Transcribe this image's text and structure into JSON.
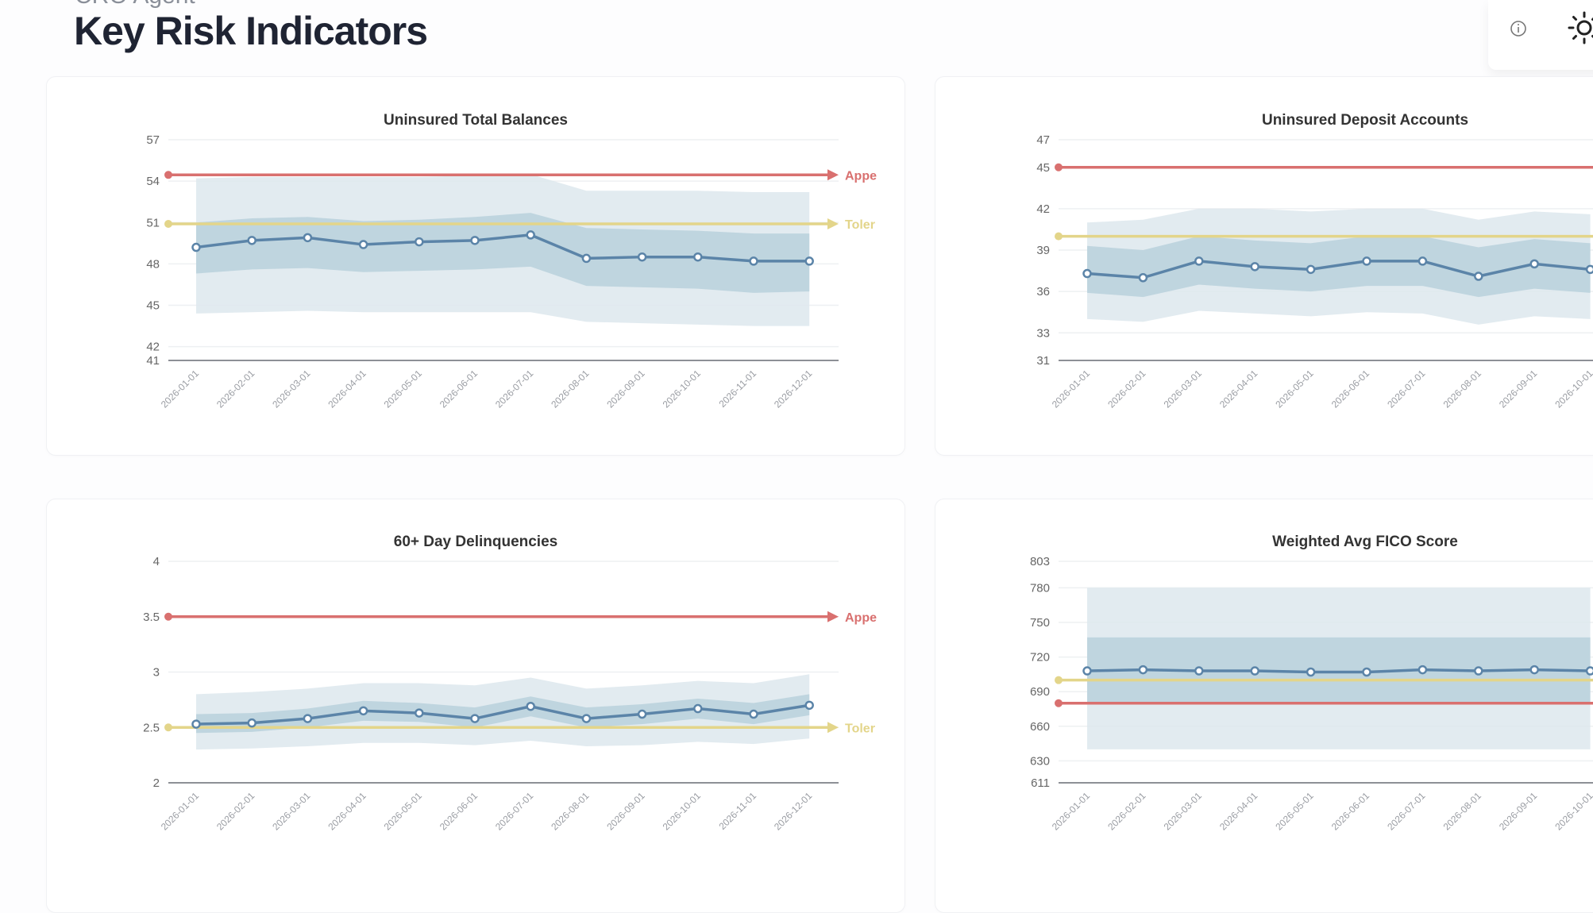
{
  "header": {
    "kicker": "CRO Agent",
    "title": "Key Risk Indicators",
    "icons": [
      "info-icon",
      "sun-icon"
    ]
  },
  "colors": {
    "appetite": "#d9706f",
    "tolerance": "#e3d58a",
    "series": "#5b84a8",
    "outer_band": "#dde8ed",
    "inner_band": "#b9d1dc"
  },
  "chart_data": [
    {
      "type": "line",
      "title": "Uninsured Total Balances",
      "categories": [
        "2026-01-01",
        "2026-02-01",
        "2026-03-01",
        "2026-04-01",
        "2026-05-01",
        "2026-06-01",
        "2026-07-01",
        "2026-08-01",
        "2026-09-01",
        "2026-10-01",
        "2026-11-01",
        "2026-12-01"
      ],
      "values": [
        49.2,
        49.7,
        49.9,
        49.4,
        49.6,
        49.7,
        50.1,
        48.4,
        48.5,
        48.5,
        48.2,
        48.2
      ],
      "inner_band": {
        "upper": [
          51.0,
          51.3,
          51.4,
          51.1,
          51.2,
          51.4,
          51.7,
          50.6,
          50.5,
          50.4,
          50.2,
          50.2
        ],
        "lower": [
          47.3,
          47.6,
          47.7,
          47.4,
          47.5,
          47.6,
          47.8,
          46.4,
          46.3,
          46.2,
          45.9,
          46.0
        ]
      },
      "outer_band": {
        "upper": [
          54.2,
          54.3,
          54.3,
          54.3,
          54.3,
          54.4,
          54.5,
          53.3,
          53.3,
          53.3,
          53.2,
          53.2
        ],
        "lower": [
          44.4,
          44.5,
          44.6,
          44.5,
          44.5,
          44.5,
          44.5,
          43.8,
          43.7,
          43.6,
          43.5,
          43.5
        ]
      },
      "ylim": [
        41,
        57
      ],
      "yticks": [
        41,
        42,
        45,
        48,
        51,
        54,
        57
      ],
      "thresholds": [
        {
          "label": "Appe",
          "value": 54.45,
          "kind": "appetite"
        },
        {
          "label": "Toler",
          "value": 50.9,
          "kind": "tolerance"
        }
      ]
    },
    {
      "type": "line",
      "title": "Uninsured Deposit Accounts",
      "categories": [
        "2026-01-01",
        "2026-02-01",
        "2026-03-01",
        "2026-04-01",
        "2026-05-01",
        "2026-06-01",
        "2026-07-01",
        "2026-08-01",
        "2026-09-01",
        "2026-10-01"
      ],
      "values": [
        37.3,
        37.0,
        38.2,
        37.8,
        37.6,
        38.2,
        38.2,
        37.1,
        38.0,
        37.6
      ],
      "inner_band": {
        "upper": [
          39.3,
          39.0,
          40.0,
          39.7,
          39.5,
          40.0,
          40.0,
          39.2,
          39.8,
          39.5
        ],
        "lower": [
          35.9,
          35.6,
          36.5,
          36.2,
          36.0,
          36.4,
          36.4,
          35.6,
          36.2,
          35.9
        ]
      },
      "outer_band": {
        "upper": [
          41.0,
          41.2,
          42.0,
          42.0,
          41.8,
          42.0,
          42.0,
          41.2,
          41.8,
          41.6
        ],
        "lower": [
          34.0,
          33.8,
          34.6,
          34.4,
          34.2,
          34.5,
          34.4,
          33.6,
          34.2,
          34.0
        ]
      },
      "ylim": [
        31,
        47
      ],
      "yticks": [
        31,
        33,
        36,
        39,
        42,
        45,
        47
      ],
      "thresholds": [
        {
          "label": "",
          "value": 45,
          "kind": "appetite"
        },
        {
          "label": "",
          "value": 40,
          "kind": "tolerance"
        }
      ]
    },
    {
      "type": "line",
      "title": "60+ Day Delinquencies",
      "categories": [
        "2026-01-01",
        "2026-02-01",
        "2026-03-01",
        "2026-04-01",
        "2026-05-01",
        "2026-06-01",
        "2026-07-01",
        "2026-08-01",
        "2026-09-01",
        "2026-10-01",
        "2026-11-01",
        "2026-12-01"
      ],
      "values": [
        2.53,
        2.54,
        2.58,
        2.65,
        2.63,
        2.58,
        2.69,
        2.58,
        2.62,
        2.67,
        2.62,
        2.7
      ],
      "inner_band": {
        "upper": [
          2.62,
          2.63,
          2.67,
          2.74,
          2.72,
          2.68,
          2.78,
          2.68,
          2.71,
          2.76,
          2.72,
          2.8
        ],
        "lower": [
          2.45,
          2.46,
          2.5,
          2.56,
          2.55,
          2.5,
          2.6,
          2.5,
          2.53,
          2.58,
          2.53,
          2.61
        ]
      },
      "outer_band": {
        "upper": [
          2.8,
          2.82,
          2.85,
          2.9,
          2.9,
          2.88,
          2.95,
          2.85,
          2.88,
          2.92,
          2.9,
          2.98
        ],
        "lower": [
          2.3,
          2.31,
          2.33,
          2.36,
          2.36,
          2.34,
          2.38,
          2.33,
          2.34,
          2.37,
          2.35,
          2.4
        ]
      },
      "ylim": [
        2,
        4
      ],
      "yticks": [
        2,
        2.5,
        3,
        3.5,
        4
      ],
      "thresholds": [
        {
          "label": "Appe",
          "value": 3.5,
          "kind": "appetite"
        },
        {
          "label": "Toler",
          "value": 2.5,
          "kind": "tolerance"
        }
      ]
    },
    {
      "type": "line",
      "title": "Weighted Avg FICO Score",
      "categories": [
        "2026-01-01",
        "2026-02-01",
        "2026-03-01",
        "2026-04-01",
        "2026-05-01",
        "2026-06-01",
        "2026-07-01",
        "2026-08-01",
        "2026-09-01",
        "2026-10-01"
      ],
      "values": [
        708,
        709,
        708,
        708,
        707,
        707,
        709,
        708,
        709,
        708
      ],
      "inner_band": {
        "upper": [
          737,
          737,
          737,
          737,
          737,
          737,
          737,
          737,
          737,
          737
        ],
        "lower": [
          680,
          680,
          680,
          680,
          680,
          680,
          680,
          680,
          680,
          680
        ]
      },
      "outer_band": {
        "upper": [
          780,
          780,
          780,
          780,
          780,
          780,
          780,
          780,
          780,
          780
        ],
        "lower": [
          640,
          640,
          640,
          640,
          640,
          640,
          640,
          640,
          640,
          640
        ]
      },
      "ylim": [
        611,
        803
      ],
      "yticks": [
        611,
        630,
        660,
        690,
        720,
        750,
        780,
        803
      ],
      "thresholds": [
        {
          "label": "",
          "value": 680,
          "kind": "appetite"
        },
        {
          "label": "",
          "value": 700,
          "kind": "tolerance"
        }
      ]
    }
  ]
}
